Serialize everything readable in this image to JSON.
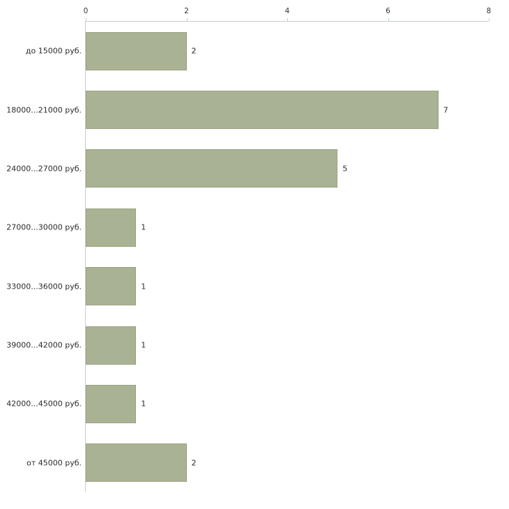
{
  "chart_data": {
    "type": "bar",
    "orientation": "horizontal",
    "title": "",
    "xlabel": "",
    "ylabel": "",
    "categories": [
      "до 15000 руб.",
      "18000...21000 руб.",
      "24000...27000 руб.",
      "27000...30000 руб.",
      "33000...36000 руб.",
      "39000...42000 руб.",
      "42000...45000 руб.",
      "от 45000 руб."
    ],
    "values": [
      2,
      7,
      5,
      1,
      1,
      1,
      1,
      2
    ],
    "xlim": [
      0,
      8
    ],
    "xticks": [
      0,
      2,
      4,
      6,
      8
    ],
    "grid": false,
    "legend": "none",
    "bar_color": "#a9b293",
    "bar_border_color": "#9aa384",
    "axis_color": "#c3cbd5",
    "text_color": "#2b2b2b"
  }
}
